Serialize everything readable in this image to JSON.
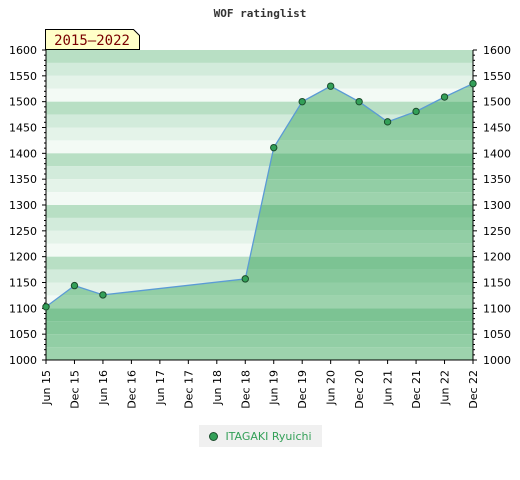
{
  "chart_data": {
    "type": "area",
    "title": "WOF ratinglist",
    "period_badge": "2015–2022",
    "x": [
      "Jun 15",
      "Dec 15",
      "Jun 16",
      "Dec 16",
      "Jun 17",
      "Dec 17",
      "Jun 18",
      "Dec 18",
      "Jun 19",
      "Dec 19",
      "Jun 20",
      "Dec 20",
      "Jun 21",
      "Dec 21",
      "Jun 22",
      "Dec 22"
    ],
    "series": [
      {
        "name": "ITAGAKI Ryuichi",
        "points": [
          {
            "x": "Jun 15",
            "y": 1103
          },
          {
            "x": "Dec 15",
            "y": 1144
          },
          {
            "x": "Jun 16",
            "y": 1126
          },
          {
            "x": "Dec 18",
            "y": 1157
          },
          {
            "x": "Jun 19",
            "y": 1411
          },
          {
            "x": "Dec 19",
            "y": 1500
          },
          {
            "x": "Jun 20",
            "y": 1530
          },
          {
            "x": "Dec 20",
            "y": 1500
          },
          {
            "x": "Jun 21",
            "y": 1461
          },
          {
            "x": "Dec 21",
            "y": 1481
          },
          {
            "x": "Jun 22",
            "y": 1509
          },
          {
            "x": "Dec 22",
            "y": 1535
          }
        ]
      }
    ],
    "y_ticks": [
      1000,
      1050,
      1100,
      1150,
      1200,
      1250,
      1300,
      1350,
      1400,
      1450,
      1500,
      1550,
      1600
    ],
    "ylim": [
      1000,
      1600
    ],
    "right_axis": true,
    "grid": "horizontal bands",
    "legend_position": "bottom-center",
    "colors": {
      "fill": "#2e9e55",
      "line": "#5b9bd5",
      "marker": "#33a058",
      "legend_text": "#33a058",
      "badge_bg": "#ffffc8"
    }
  }
}
